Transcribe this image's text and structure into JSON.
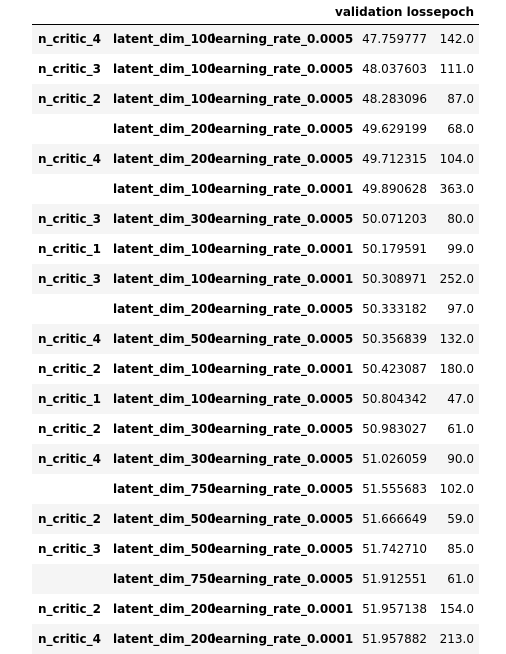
{
  "table": {
    "columns": {
      "validation_loss": "validation loss",
      "epoch": "epoch"
    },
    "rows": [
      {
        "n_critic": "n_critic_4",
        "latent_dim": "latent_dim_100",
        "learning_rate": "learning_rate_0.0005",
        "validation_loss": "47.759777",
        "epoch": "142.0"
      },
      {
        "n_critic": "n_critic_3",
        "latent_dim": "latent_dim_100",
        "learning_rate": "learning_rate_0.0005",
        "validation_loss": "48.037603",
        "epoch": "111.0"
      },
      {
        "n_critic": "n_critic_2",
        "latent_dim": "latent_dim_100",
        "learning_rate": "learning_rate_0.0005",
        "validation_loss": "48.283096",
        "epoch": "87.0"
      },
      {
        "n_critic": "",
        "latent_dim": "latent_dim_200",
        "learning_rate": "learning_rate_0.0005",
        "validation_loss": "49.629199",
        "epoch": "68.0"
      },
      {
        "n_critic": "n_critic_4",
        "latent_dim": "latent_dim_200",
        "learning_rate": "learning_rate_0.0005",
        "validation_loss": "49.712315",
        "epoch": "104.0"
      },
      {
        "n_critic": "",
        "latent_dim": "latent_dim_100",
        "learning_rate": "learning_rate_0.0001",
        "validation_loss": "49.890628",
        "epoch": "363.0"
      },
      {
        "n_critic": "n_critic_3",
        "latent_dim": "latent_dim_300",
        "learning_rate": "learning_rate_0.0005",
        "validation_loss": "50.071203",
        "epoch": "80.0"
      },
      {
        "n_critic": "n_critic_1",
        "latent_dim": "latent_dim_100",
        "learning_rate": "learning_rate_0.0001",
        "validation_loss": "50.179591",
        "epoch": "99.0"
      },
      {
        "n_critic": "n_critic_3",
        "latent_dim": "latent_dim_100",
        "learning_rate": "learning_rate_0.0001",
        "validation_loss": "50.308971",
        "epoch": "252.0"
      },
      {
        "n_critic": "",
        "latent_dim": "latent_dim_200",
        "learning_rate": "learning_rate_0.0005",
        "validation_loss": "50.333182",
        "epoch": "97.0"
      },
      {
        "n_critic": "n_critic_4",
        "latent_dim": "latent_dim_500",
        "learning_rate": "learning_rate_0.0005",
        "validation_loss": "50.356839",
        "epoch": "132.0"
      },
      {
        "n_critic": "n_critic_2",
        "latent_dim": "latent_dim_100",
        "learning_rate": "learning_rate_0.0001",
        "validation_loss": "50.423087",
        "epoch": "180.0"
      },
      {
        "n_critic": "n_critic_1",
        "latent_dim": "latent_dim_100",
        "learning_rate": "learning_rate_0.0005",
        "validation_loss": "50.804342",
        "epoch": "47.0"
      },
      {
        "n_critic": "n_critic_2",
        "latent_dim": "latent_dim_300",
        "learning_rate": "learning_rate_0.0005",
        "validation_loss": "50.983027",
        "epoch": "61.0"
      },
      {
        "n_critic": "n_critic_4",
        "latent_dim": "latent_dim_300",
        "learning_rate": "learning_rate_0.0005",
        "validation_loss": "51.026059",
        "epoch": "90.0"
      },
      {
        "n_critic": "",
        "latent_dim": "latent_dim_750",
        "learning_rate": "learning_rate_0.0005",
        "validation_loss": "51.555683",
        "epoch": "102.0"
      },
      {
        "n_critic": "n_critic_2",
        "latent_dim": "latent_dim_500",
        "learning_rate": "learning_rate_0.0005",
        "validation_loss": "51.666649",
        "epoch": "59.0"
      },
      {
        "n_critic": "n_critic_3",
        "latent_dim": "latent_dim_500",
        "learning_rate": "learning_rate_0.0005",
        "validation_loss": "51.742710",
        "epoch": "85.0"
      },
      {
        "n_critic": "",
        "latent_dim": "latent_dim_750",
        "learning_rate": "learning_rate_0.0005",
        "validation_loss": "51.912551",
        "epoch": "61.0"
      },
      {
        "n_critic": "n_critic_2",
        "latent_dim": "latent_dim_200",
        "learning_rate": "learning_rate_0.0001",
        "validation_loss": "51.957138",
        "epoch": "154.0"
      },
      {
        "n_critic": "n_critic_4",
        "latent_dim": "latent_dim_200",
        "learning_rate": "learning_rate_0.0001",
        "validation_loss": "51.957882",
        "epoch": "213.0"
      }
    ]
  }
}
